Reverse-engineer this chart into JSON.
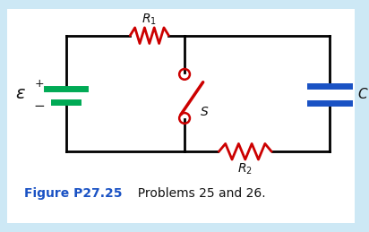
{
  "bg_color": "#cde8f5",
  "panel_color": "#ffffff",
  "wire_color": "#000000",
  "resistor_color": "#cc0000",
  "battery_color": "#00aa55",
  "capacitor_color": "#1a52c4",
  "switch_color": "#cc0000",
  "label_color": "#111111",
  "figure_label_color": "#1a52c4",
  "figure_label_bold": "Figure P27.25",
  "figure_label_normal": "  Problems 25 and 26.",
  "wire_lw": 2.0,
  "component_lw": 2.0
}
